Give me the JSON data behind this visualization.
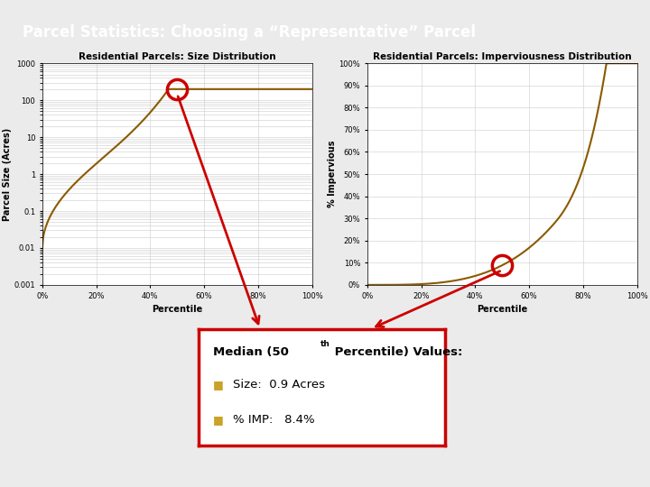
{
  "title": "Parcel Statistics: Choosing a “Representative” Parcel",
  "title_bg": "#1F3864",
  "title_fg": "#FFFFFF",
  "border_color": "#C9A227",
  "slide_bg": "#EBEBEB",
  "chart1_title": "Residential Parcels: Size Distribution",
  "chart1_xlabel": "Percentile",
  "chart1_ylabel": "Parcel Size (Acres)",
  "chart2_title": "Residential Parcels: Imperviousness Distribution",
  "chart2_xlabel": "Percentile",
  "chart2_ylabel": "% Impervious",
  "curve_color": "#8B5A00",
  "circle_color": "#CC0000",
  "arrow_color": "#CC0000",
  "box_border_color": "#CC0000",
  "box_bg": "#FFFFFF",
  "bullet_color": "#C9A227",
  "bullet1": "Size:  0.9 Acres",
  "bullet2": "% IMP:   8.4%",
  "chart_bg": "#FFFFFF",
  "chart_grid_color": "#CCCCCC"
}
